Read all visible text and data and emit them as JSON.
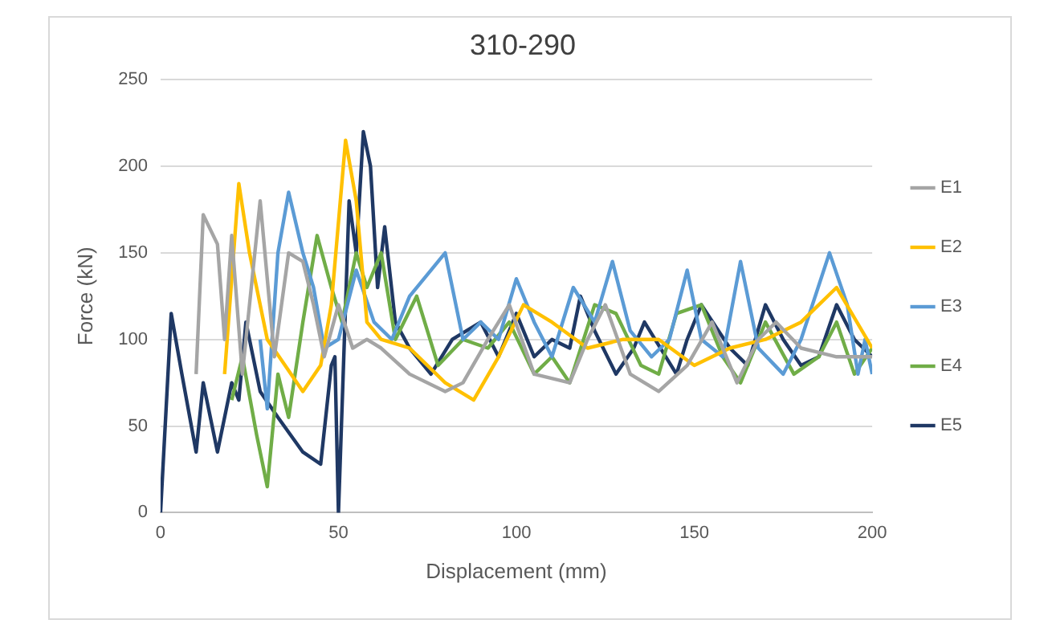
{
  "chart_data": {
    "type": "line",
    "title": "310-290",
    "xlabel": "Displacement (mm)",
    "ylabel": "Force (kN)",
    "xlim": [
      0,
      200
    ],
    "xticks": [
      0,
      50,
      100,
      150,
      200
    ],
    "ylim": [
      0,
      250
    ],
    "yticks": [
      0,
      50,
      100,
      150,
      200,
      250
    ],
    "grid": "y",
    "legend": "right",
    "marker": "none",
    "line_style": "solid",
    "series": [
      {
        "name": "E1",
        "color": "#a5a5a5",
        "x": [
          10,
          12,
          16,
          18,
          20,
          23,
          28,
          32,
          36,
          40,
          43,
          46,
          50,
          54,
          58,
          62,
          70,
          80,
          85,
          92,
          98,
          105,
          115,
          120,
          125,
          132,
          140,
          148,
          155,
          162,
          168,
          173,
          180,
          190,
          200
        ],
        "values": [
          80,
          172,
          155,
          100,
          160,
          80,
          180,
          90,
          150,
          145,
          120,
          90,
          120,
          95,
          100,
          95,
          80,
          70,
          75,
          100,
          120,
          80,
          75,
          100,
          120,
          80,
          70,
          85,
          110,
          75,
          100,
          110,
          95,
          90,
          90
        ]
      },
      {
        "name": "E2",
        "color": "#ffc000",
        "x": [
          18,
          22,
          25,
          30,
          35,
          40,
          45,
          48,
          52,
          55,
          58,
          62,
          70,
          80,
          88,
          95,
          102,
          110,
          120,
          130,
          140,
          150,
          160,
          170,
          180,
          190,
          200
        ],
        "values": [
          80,
          190,
          150,
          100,
          85,
          70,
          85,
          120,
          215,
          180,
          110,
          100,
          95,
          75,
          65,
          90,
          120,
          110,
          95,
          100,
          100,
          85,
          95,
          100,
          110,
          130,
          95
        ]
      },
      {
        "name": "E3",
        "color": "#5b9bd5",
        "x": [
          28,
          30,
          33,
          36,
          40,
          43,
          46,
          50,
          55,
          60,
          65,
          70,
          80,
          85,
          90,
          95,
          100,
          105,
          110,
          116,
          122,
          127,
          132,
          138,
          143,
          148,
          152,
          158,
          163,
          168,
          175,
          180,
          188,
          193,
          196,
          198,
          200
        ],
        "values": [
          100,
          60,
          150,
          185,
          150,
          130,
          95,
          100,
          140,
          110,
          100,
          125,
          150,
          100,
          110,
          100,
          135,
          110,
          90,
          130,
          110,
          145,
          105,
          90,
          100,
          140,
          100,
          90,
          145,
          95,
          80,
          100,
          150,
          120,
          80,
          100,
          80
        ]
      },
      {
        "name": "E4",
        "color": "#70ad47",
        "x": [
          20,
          23,
          27,
          30,
          33,
          36,
          40,
          44,
          48,
          51,
          55,
          58,
          62,
          66,
          72,
          78,
          85,
          92,
          98,
          105,
          110,
          115,
          122,
          128,
          135,
          140,
          145,
          152,
          158,
          163,
          170,
          178,
          185,
          190,
          195,
          200
        ],
        "values": [
          65,
          90,
          45,
          15,
          80,
          55,
          110,
          160,
          130,
          110,
          150,
          130,
          150,
          100,
          125,
          85,
          100,
          95,
          110,
          80,
          90,
          75,
          120,
          115,
          85,
          80,
          115,
          120,
          90,
          75,
          110,
          80,
          90,
          110,
          80,
          95
        ]
      },
      {
        "name": "E5",
        "color": "#1f3864",
        "x": [
          0,
          3,
          6,
          10,
          12,
          16,
          20,
          22,
          24,
          28,
          33,
          40,
          45,
          48,
          49,
          50,
          53,
          55,
          57,
          59,
          61,
          63,
          66,
          70,
          76,
          82,
          90,
          95,
          100,
          105,
          110,
          115,
          118,
          122,
          128,
          133,
          136,
          142,
          145,
          148,
          152,
          160,
          165,
          170,
          175,
          180,
          185,
          190,
          195,
          200
        ],
        "values": [
          0,
          115,
          80,
          35,
          75,
          35,
          75,
          65,
          110,
          70,
          55,
          35,
          28,
          85,
          90,
          0,
          180,
          150,
          220,
          200,
          130,
          165,
          110,
          95,
          80,
          100,
          110,
          90,
          115,
          90,
          100,
          95,
          125,
          105,
          80,
          95,
          110,
          90,
          80,
          100,
          120,
          95,
          85,
          120,
          100,
          85,
          90,
          120,
          100,
          90
        ]
      }
    ]
  }
}
